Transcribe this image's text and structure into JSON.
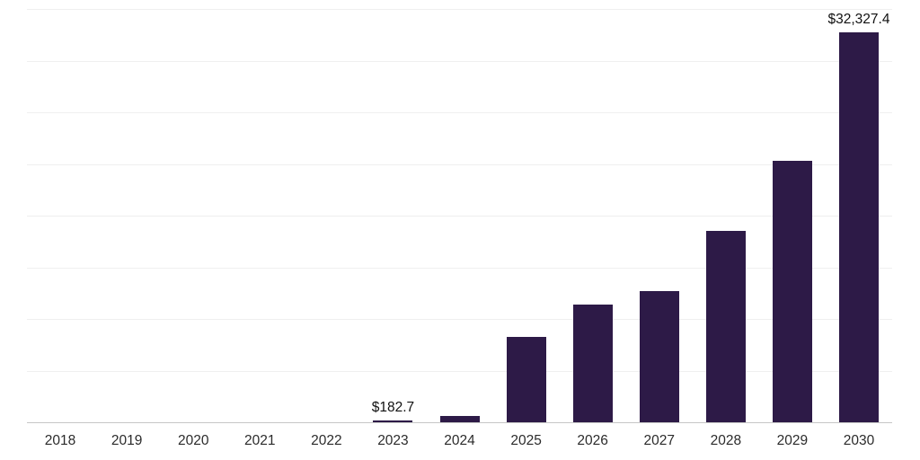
{
  "chart_data": {
    "type": "bar",
    "title": "",
    "xlabel": "",
    "ylabel": "",
    "categories": [
      "2018",
      "2019",
      "2020",
      "2021",
      "2022",
      "2023",
      "2024",
      "2025",
      "2026",
      "2027",
      "2028",
      "2029",
      "2030"
    ],
    "values": [
      0,
      0,
      0,
      0,
      0,
      182.7,
      550,
      7100,
      9800,
      10900,
      15900,
      21700,
      32327.4
    ],
    "labels": {
      "2023": "$182.7",
      "2030": "$32,327.4"
    },
    "ylim": [
      0,
      34300
    ],
    "grid": true,
    "gridline_count": 8,
    "legend": "none",
    "bar_color": "#2d1a47",
    "axis_line_color": "#c6c6c6",
    "gridline_color": "#efefef",
    "label_color": "#111111",
    "tick_label_color": "#2b2b2b"
  }
}
